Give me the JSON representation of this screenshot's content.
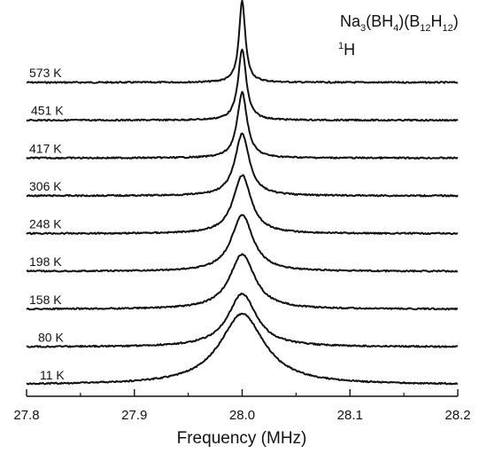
{
  "chart_data": {
    "type": "line",
    "title": "",
    "xlabel": "Frequency (MHz)",
    "ylabel": "",
    "xlim": [
      27.8,
      28.2
    ],
    "x_ticks": [
      "27.8",
      "27.9",
      "28.0",
      "28.1",
      "28.2"
    ],
    "grid": false,
    "annotation": {
      "formula_parts": [
        "Na",
        "3",
        "(BH",
        "4",
        ")(B",
        "12",
        "H",
        "12",
        ")"
      ],
      "nucleus_sup": "1",
      "nucleus": "H"
    },
    "series": [
      {
        "name": "573 K",
        "center": 28.0,
        "fwhm_mhz": 0.007,
        "relative_height": 2.3
      },
      {
        "name": "451 K",
        "center": 28.0,
        "fwhm_mhz": 0.009,
        "relative_height": 2.0
      },
      {
        "name": "417 K",
        "center": 28.0,
        "fwhm_mhz": 0.011,
        "relative_height": 1.85
      },
      {
        "name": "306 K",
        "center": 28.0,
        "fwhm_mhz": 0.016,
        "relative_height": 1.75
      },
      {
        "name": "248 K",
        "center": 28.0,
        "fwhm_mhz": 0.02,
        "relative_height": 1.65
      },
      {
        "name": "198 K",
        "center": 28.0,
        "fwhm_mhz": 0.024,
        "relative_height": 1.6
      },
      {
        "name": "158 K",
        "center": 28.0,
        "fwhm_mhz": 0.028,
        "relative_height": 1.55
      },
      {
        "name": "80 K",
        "center": 28.0,
        "fwhm_mhz": 0.032,
        "relative_height": 1.5
      },
      {
        "name": "11 K",
        "center": 28.0,
        "fwhm_mhz": 0.05,
        "relative_height": 2.0
      }
    ]
  }
}
